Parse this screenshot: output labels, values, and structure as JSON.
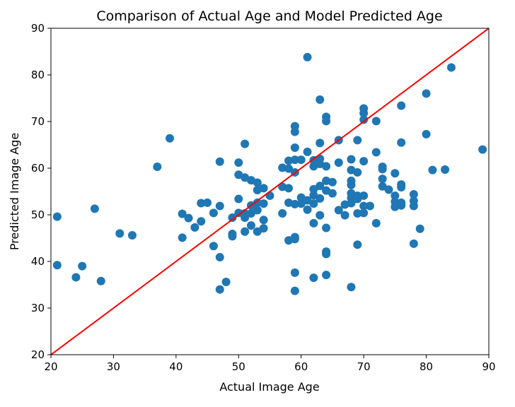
{
  "chart_data": {
    "type": "scatter",
    "title": "Comparison of Actual Age and Model Predicted Age",
    "xlabel": "Actual Image Age",
    "ylabel": "Predicted Image Age",
    "xlim": [
      20,
      90
    ],
    "ylim": [
      20,
      90
    ],
    "xticks": [
      20,
      30,
      40,
      50,
      60,
      70,
      80,
      90
    ],
    "yticks": [
      20,
      30,
      40,
      50,
      60,
      70,
      80,
      90
    ],
    "grid": false,
    "point_color": "#1f77b4",
    "line_color": "#ff0000",
    "reference_line": {
      "x": [
        20,
        90
      ],
      "y": [
        20,
        90
      ]
    },
    "points": [
      [
        21,
        49.6
      ],
      [
        21,
        39.2
      ],
      [
        24,
        36.6
      ],
      [
        25,
        39.0
      ],
      [
        27,
        51.3
      ],
      [
        28,
        35.8
      ],
      [
        31,
        46.0
      ],
      [
        33,
        45.6
      ],
      [
        37,
        60.3
      ],
      [
        39,
        66.4
      ],
      [
        41,
        50.2
      ],
      [
        41,
        45.1
      ],
      [
        42,
        49.3
      ],
      [
        43,
        47.3
      ],
      [
        44,
        52.5
      ],
      [
        44,
        48.6
      ],
      [
        45,
        52.6
      ],
      [
        46,
        50.4
      ],
      [
        46,
        43.3
      ],
      [
        47,
        61.4
      ],
      [
        47,
        51.9
      ],
      [
        47,
        40.9
      ],
      [
        47,
        34.0
      ],
      [
        48,
        35.6
      ],
      [
        49,
        49.4
      ],
      [
        49,
        45.9
      ],
      [
        49,
        45.4
      ],
      [
        50,
        61.2
      ],
      [
        50,
        58.6
      ],
      [
        50,
        53.4
      ],
      [
        50,
        50.4
      ],
      [
        51,
        65.2
      ],
      [
        51,
        58.0
      ],
      [
        51,
        50.3
      ],
      [
        51,
        49.4
      ],
      [
        51,
        46.4
      ],
      [
        52,
        57.4
      ],
      [
        52,
        52.0
      ],
      [
        52,
        50.3
      ],
      [
        52,
        47.7
      ],
      [
        53,
        56.9
      ],
      [
        53,
        55.3
      ],
      [
        53,
        52.6
      ],
      [
        53,
        51.0
      ],
      [
        53,
        46.4
      ],
      [
        54,
        55.7
      ],
      [
        54,
        52.4
      ],
      [
        54,
        48.9
      ],
      [
        54,
        47.1
      ],
      [
        55,
        54.1
      ],
      [
        57,
        60.1
      ],
      [
        57,
        56.0
      ],
      [
        57,
        50.3
      ],
      [
        58,
        61.6
      ],
      [
        58,
        59.9
      ],
      [
        58,
        55.7
      ],
      [
        58,
        52.6
      ],
      [
        58,
        44.5
      ],
      [
        59,
        69.0
      ],
      [
        59,
        67.8
      ],
      [
        59,
        64.4
      ],
      [
        59,
        61.8
      ],
      [
        59,
        59.1
      ],
      [
        59,
        52.3
      ],
      [
        59,
        45.2
      ],
      [
        59,
        44.8
      ],
      [
        59,
        37.6
      ],
      [
        59,
        33.7
      ],
      [
        60,
        61.8
      ],
      [
        60,
        53.7
      ],
      [
        60,
        52.4
      ],
      [
        61,
        83.8
      ],
      [
        61,
        63.5
      ],
      [
        61,
        53.1
      ],
      [
        61,
        51.1
      ],
      [
        62,
        61.7
      ],
      [
        62,
        60.4
      ],
      [
        62,
        55.5
      ],
      [
        62,
        54.2
      ],
      [
        62,
        52.4
      ],
      [
        62,
        48.2
      ],
      [
        62,
        36.5
      ],
      [
        63,
        74.7
      ],
      [
        63,
        65.4
      ],
      [
        63,
        62.0
      ],
      [
        63,
        60.9
      ],
      [
        63,
        56.2
      ],
      [
        63,
        53.5
      ],
      [
        63,
        49.9
      ],
      [
        64,
        71.0
      ],
      [
        64,
        70.1
      ],
      [
        64,
        60.4
      ],
      [
        64,
        57.3
      ],
      [
        64,
        55.2
      ],
      [
        64,
        47.2
      ],
      [
        64,
        42.1
      ],
      [
        64,
        41.6
      ],
      [
        64,
        37.1
      ],
      [
        65,
        57.0
      ],
      [
        65,
        54.6
      ],
      [
        66,
        66.0
      ],
      [
        66,
        61.2
      ],
      [
        66,
        51.0
      ],
      [
        67,
        52.2
      ],
      [
        67,
        49.9
      ],
      [
        68,
        61.9
      ],
      [
        68,
        59.6
      ],
      [
        68,
        57.3
      ],
      [
        68,
        56.4
      ],
      [
        68,
        54.6
      ],
      [
        68,
        53.6
      ],
      [
        68,
        52.5
      ],
      [
        68,
        34.5
      ],
      [
        69,
        66.0
      ],
      [
        69,
        59.1
      ],
      [
        69,
        54.1
      ],
      [
        69,
        53.4
      ],
      [
        69,
        50.3
      ],
      [
        69,
        43.6
      ],
      [
        70,
        72.8
      ],
      [
        70,
        71.8
      ],
      [
        70,
        70.4
      ],
      [
        70,
        61.5
      ],
      [
        70,
        54.1
      ],
      [
        70,
        51.9
      ],
      [
        70,
        50.4
      ],
      [
        71,
        51.9
      ],
      [
        72,
        70.1
      ],
      [
        72,
        63.4
      ],
      [
        72,
        48.2
      ],
      [
        73,
        60.3
      ],
      [
        73,
        59.8
      ],
      [
        73,
        57.7
      ],
      [
        73,
        56.1
      ],
      [
        74,
        55.4
      ],
      [
        75,
        58.9
      ],
      [
        75,
        54.1
      ],
      [
        75,
        52.8
      ],
      [
        75,
        51.7
      ],
      [
        76,
        73.4
      ],
      [
        76,
        65.5
      ],
      [
        76,
        56.5
      ],
      [
        76,
        55.9
      ],
      [
        76,
        52.6
      ],
      [
        76,
        52.0
      ],
      [
        78,
        54.4
      ],
      [
        78,
        53.0
      ],
      [
        78,
        51.9
      ],
      [
        78,
        43.8
      ],
      [
        79,
        47.0
      ],
      [
        80,
        76.0
      ],
      [
        80,
        67.3
      ],
      [
        81,
        59.6
      ],
      [
        83,
        59.7
      ],
      [
        84,
        81.6
      ],
      [
        89,
        64.0
      ]
    ]
  }
}
